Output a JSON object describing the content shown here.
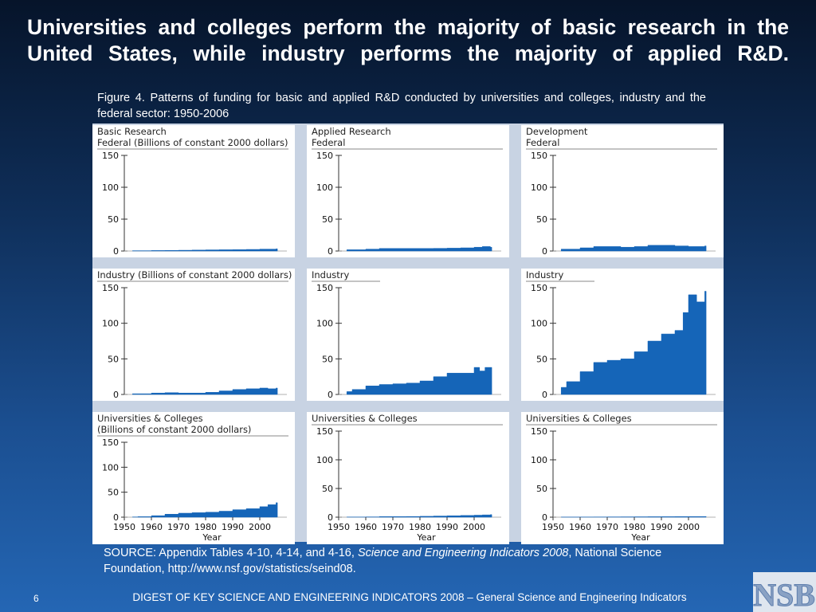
{
  "slide": {
    "title": "Universities and colleges perform the majority of basic research in the United States, while industry performs the majority of applied R&D.",
    "caption": "Figure 4. Patterns of funding for basic and applied R&D conducted by universities and colleges, industry and the federal sector: 1950-2006",
    "source_prefix": "SOURCE: Appendix Tables 4-10, 4-14, and 4-16, ",
    "source_italic": "Science and Engineering Indicators 2008",
    "source_suffix": ", National Science Foundation, http://www.nsf.gov/statistics/seind08.",
    "page_number": "6",
    "footer": "DIGEST OF KEY SCIENCE AND ENGINEERING INDICATORS 2008 – General Science and Engineering Indicators",
    "logo_text": "NSB"
  },
  "colors": {
    "fill": "#1565b8",
    "axis": "#333333",
    "panel_border": "#c8d3e3"
  },
  "chart_data": [
    {
      "type": "area",
      "title_lines": [
        "Basic Research",
        "Federal (Billions of constant 2000 dollars)"
      ],
      "xlabel": "",
      "ylim": [
        0,
        150
      ],
      "yticks": [
        0,
        50,
        100,
        150
      ],
      "xticks": [],
      "x": [
        1953,
        1960,
        1965,
        1970,
        1975,
        1980,
        1985,
        1990,
        1995,
        2000,
        2006
      ],
      "y": [
        0.5,
        0.8,
        1,
        1.2,
        1.5,
        1.8,
        2,
        2.2,
        2.5,
        3,
        3.5
      ]
    },
    {
      "type": "area",
      "title_lines": [
        "Applied Research",
        "Federal"
      ],
      "xlabel": "",
      "ylim": [
        0,
        150
      ],
      "yticks": [
        0,
        50,
        100,
        150
      ],
      "xticks": [],
      "x": [
        1953,
        1960,
        1965,
        1970,
        1975,
        1980,
        1985,
        1990,
        1995,
        2000,
        2003,
        2006
      ],
      "y": [
        2,
        3,
        4,
        4,
        4,
        4,
        4.2,
        4.5,
        5,
        6,
        7,
        6
      ]
    },
    {
      "type": "area",
      "title_lines": [
        "Development",
        "Federal"
      ],
      "xlabel": "",
      "ylim": [
        0,
        150
      ],
      "yticks": [
        0,
        50,
        100,
        150
      ],
      "xticks": [],
      "x": [
        1953,
        1960,
        1965,
        1970,
        1975,
        1980,
        1985,
        1990,
        1995,
        2000,
        2006
      ],
      "y": [
        3,
        5,
        7,
        7,
        6,
        7,
        9,
        9,
        8,
        7,
        8
      ]
    },
    {
      "type": "area",
      "title_lines": [
        "Industry (Billions of constant 2000 dollars)"
      ],
      "xlabel": "",
      "ylim": [
        0,
        150
      ],
      "yticks": [
        0,
        50,
        100,
        150
      ],
      "xticks": [],
      "x": [
        1953,
        1960,
        1965,
        1970,
        1975,
        1980,
        1985,
        1990,
        1995,
        2000,
        2003,
        2006
      ],
      "y": [
        1,
        2,
        2.5,
        2,
        2,
        3,
        5,
        7,
        8,
        9,
        8,
        9
      ]
    },
    {
      "type": "area",
      "title_lines": [
        "Industry"
      ],
      "xlabel": "",
      "ylim": [
        0,
        150
      ],
      "yticks": [
        0,
        50,
        100,
        150
      ],
      "xticks": [],
      "x": [
        1953,
        1955,
        1960,
        1965,
        1970,
        1975,
        1980,
        1985,
        1990,
        1995,
        2000,
        2002,
        2004,
        2006
      ],
      "y": [
        4,
        7,
        12,
        14,
        15,
        16,
        19,
        25,
        30,
        30,
        38,
        33,
        38,
        38
      ]
    },
    {
      "type": "area",
      "title_lines": [
        "Industry"
      ],
      "xlabel": "",
      "ylim": [
        0,
        150
      ],
      "yticks": [
        0,
        50,
        100,
        150
      ],
      "xticks": [],
      "x": [
        1953,
        1955,
        1960,
        1965,
        1970,
        1975,
        1980,
        1985,
        1990,
        1995,
        1998,
        2000,
        2003,
        2006
      ],
      "y": [
        10,
        18,
        32,
        45,
        48,
        50,
        60,
        75,
        85,
        90,
        115,
        140,
        130,
        145
      ]
    },
    {
      "type": "area",
      "title_lines": [
        "Universities & Colleges",
        "(Billions of constant 2000 dollars)"
      ],
      "xlabel": "Year",
      "ylim": [
        0,
        150
      ],
      "yticks": [
        0,
        50,
        100,
        150
      ],
      "xticks": [
        1950,
        1960,
        1970,
        1980,
        1990,
        2000
      ],
      "x": [
        1953,
        1955,
        1960,
        1965,
        1970,
        1975,
        1980,
        1985,
        1990,
        1995,
        2000,
        2003,
        2006
      ],
      "y": [
        0.5,
        1,
        3,
        6,
        8,
        9,
        10,
        12,
        15,
        17,
        21,
        25,
        29
      ]
    },
    {
      "type": "area",
      "title_lines": [
        "Universities & Colleges"
      ],
      "xlabel": "Year",
      "ylim": [
        0,
        150
      ],
      "yticks": [
        0,
        50,
        100,
        150
      ],
      "xticks": [
        1950,
        1960,
        1970,
        1980,
        1990,
        2000
      ],
      "x": [
        1953,
        1960,
        1965,
        1970,
        1975,
        1980,
        1985,
        1990,
        1995,
        2000,
        2003,
        2006
      ],
      "y": [
        0.3,
        0.5,
        1,
        1,
        1.2,
        1.5,
        2,
        2.5,
        3,
        3.5,
        4,
        4.5
      ]
    },
    {
      "type": "area",
      "title_lines": [
        "Universities & Colleges"
      ],
      "xlabel": "Year",
      "ylim": [
        0,
        150
      ],
      "yticks": [
        0,
        50,
        100,
        150
      ],
      "xticks": [
        1950,
        1960,
        1970,
        1980,
        1990,
        2000
      ],
      "x": [
        1953,
        1960,
        1965,
        1970,
        1975,
        1980,
        1985,
        1990,
        1995,
        2000,
        2006
      ],
      "y": [
        0.2,
        0.3,
        0.4,
        0.5,
        0.6,
        0.7,
        0.8,
        0.9,
        1,
        1.1,
        1.2
      ]
    }
  ]
}
